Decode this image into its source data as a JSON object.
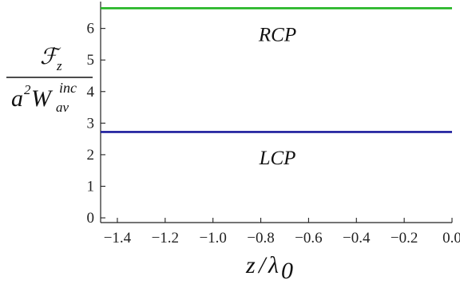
{
  "chart_data": {
    "type": "line",
    "xlim": [
      -1.47,
      0.0
    ],
    "ylim": [
      -0.15,
      6.85
    ],
    "x_ticks": [
      -1.4,
      -1.2,
      -1.0,
      -0.8,
      -0.6,
      -0.4,
      -0.2,
      0.0
    ],
    "x_tick_labels": [
      "−1.4",
      "−1.2",
      "−1.0",
      "−0.8",
      "−0.6",
      "−0.4",
      "−0.2",
      "0.0"
    ],
    "y_ticks": [
      0,
      1,
      2,
      3,
      4,
      5,
      6
    ],
    "y_tick_labels": [
      "0",
      "1",
      "2",
      "3",
      "4",
      "5",
      "6"
    ],
    "grid": false,
    "series": [
      {
        "x": [
          -1.47,
          0.0
        ],
        "y": [
          6.64,
          6.64
        ],
        "color": "#22b422"
      },
      {
        "x": [
          -1.47,
          0.0
        ],
        "y": [
          2.72,
          2.72
        ],
        "color": "#1b1b9c"
      }
    ],
    "annotations": [
      {
        "text": "RCP",
        "x": -0.73,
        "y": 5.6
      },
      {
        "text": "LCP",
        "x": -0.73,
        "y": 1.7
      }
    ],
    "ylabel": {
      "num_main": "ℱ",
      "num_sub": "z",
      "den_a": "a",
      "den_exp": "2",
      "den_W": "W",
      "den_sub": "av",
      "den_sup": "inc"
    },
    "xlabel": {
      "var": "z",
      "slash": "/",
      "lambda": "λ",
      "sub": "0"
    }
  }
}
